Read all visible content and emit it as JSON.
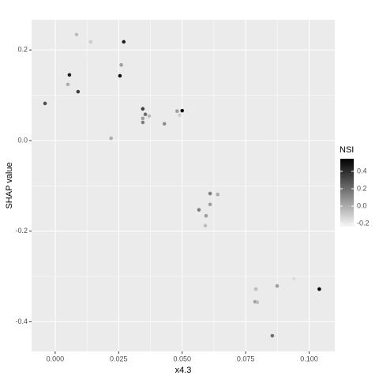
{
  "chart_data": {
    "type": "scatter",
    "x_label": "x4.3",
    "y_label": "SHAP value",
    "legend_title": "NSI",
    "x": [
      -0.004,
      0.003,
      0.0084,
      0.012,
      0.014,
      0.0056,
      0.005,
      0.009,
      0.027,
      0.026,
      0.0255,
      0.0236,
      0.022,
      0.0345,
      0.0355,
      0.037,
      0.0345,
      0.0345,
      0.043,
      0.048,
      0.05,
      0.0517,
      0.055,
      0.049,
      0.061,
      0.061,
      0.064,
      0.0566,
      0.0594,
      0.0591,
      0.0874,
      0.079,
      0.094,
      0.0787,
      0.0796,
      0.104,
      0.0855
    ],
    "values": [
      0.082,
      0.065,
      0.234,
      0.183,
      0.218,
      0.145,
      0.124,
      0.108,
      0.218,
      0.167,
      0.143,
      0.089,
      0.005,
      0.07,
      0.058,
      0.054,
      0.049,
      0.04,
      0.037,
      0.065,
      0.066,
      0.052,
      0.065,
      0.056,
      -0.117,
      -0.141,
      -0.119,
      -0.153,
      -0.166,
      -0.188,
      -0.321,
      -0.328,
      -0.305,
      -0.356,
      -0.357,
      -0.328,
      -0.431
    ],
    "nsi": [
      0.3,
      -0.2,
      -0.05,
      -0.2,
      -0.1,
      0.45,
      0,
      0.35,
      0.45,
      0.05,
      0.5,
      -0.2,
      0,
      0.35,
      0.2,
      -0.05,
      0.05,
      0.15,
      0.1,
      0.05,
      0.5,
      -0.2,
      -0.2,
      -0.1,
      0.15,
      0.05,
      0,
      0.15,
      0.05,
      -0.05,
      0.05,
      -0.05,
      -0.15,
      0.05,
      -0.05,
      0.55,
      0.2
    ],
    "xlim": [
      -0.0093,
      0.1101
    ],
    "xticks": [
      {
        "value": 0,
        "label": "0.000"
      },
      {
        "value": 0.025,
        "label": "0.025"
      },
      {
        "value": 0.05,
        "label": "0.050"
      },
      {
        "value": 0.075,
        "label": "0.075"
      },
      {
        "value": 0.1,
        "label": "0.100"
      }
    ],
    "ylim": [
      -0.4656,
      0.2668
    ],
    "yticks": [
      -0.4,
      -0.2,
      {
        "value": 0,
        "label": "0.0"
      },
      0.2
    ],
    "color_lim": [
      -0.236,
      0.545
    ],
    "color_ticks": [
      -0.2,
      {
        "value": 0,
        "label": "0.0"
      },
      0.2,
      0.4
    ],
    "low_color": "#f7f7f7",
    "high_color": "#000000",
    "grid": true
  }
}
